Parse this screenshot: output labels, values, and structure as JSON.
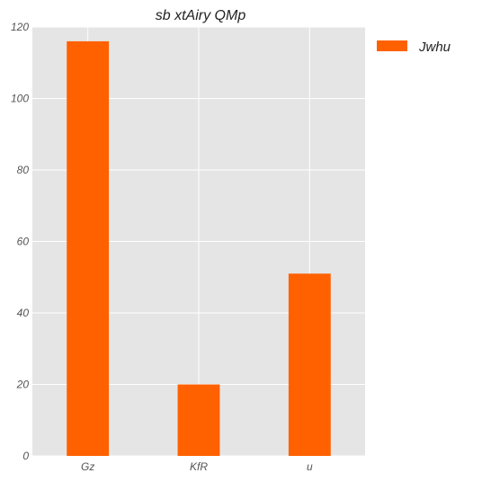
{
  "chart_data": {
    "type": "bar",
    "title": "sb xtAiry QMp",
    "xlabel": "",
    "ylabel": "",
    "categories": [
      "Gz",
      "KfR",
      "u"
    ],
    "series": [
      {
        "name": "Jwhu",
        "values": [
          116,
          20,
          51
        ],
        "color": "#ff6100"
      }
    ],
    "ylim": [
      0,
      120
    ],
    "yticks": [
      0,
      20,
      40,
      60,
      80,
      100,
      120
    ],
    "grid": true,
    "legend_position": "outside-top-right",
    "colors": {
      "plot_background": "#e5e5e5",
      "grid": "#ffffff"
    }
  }
}
